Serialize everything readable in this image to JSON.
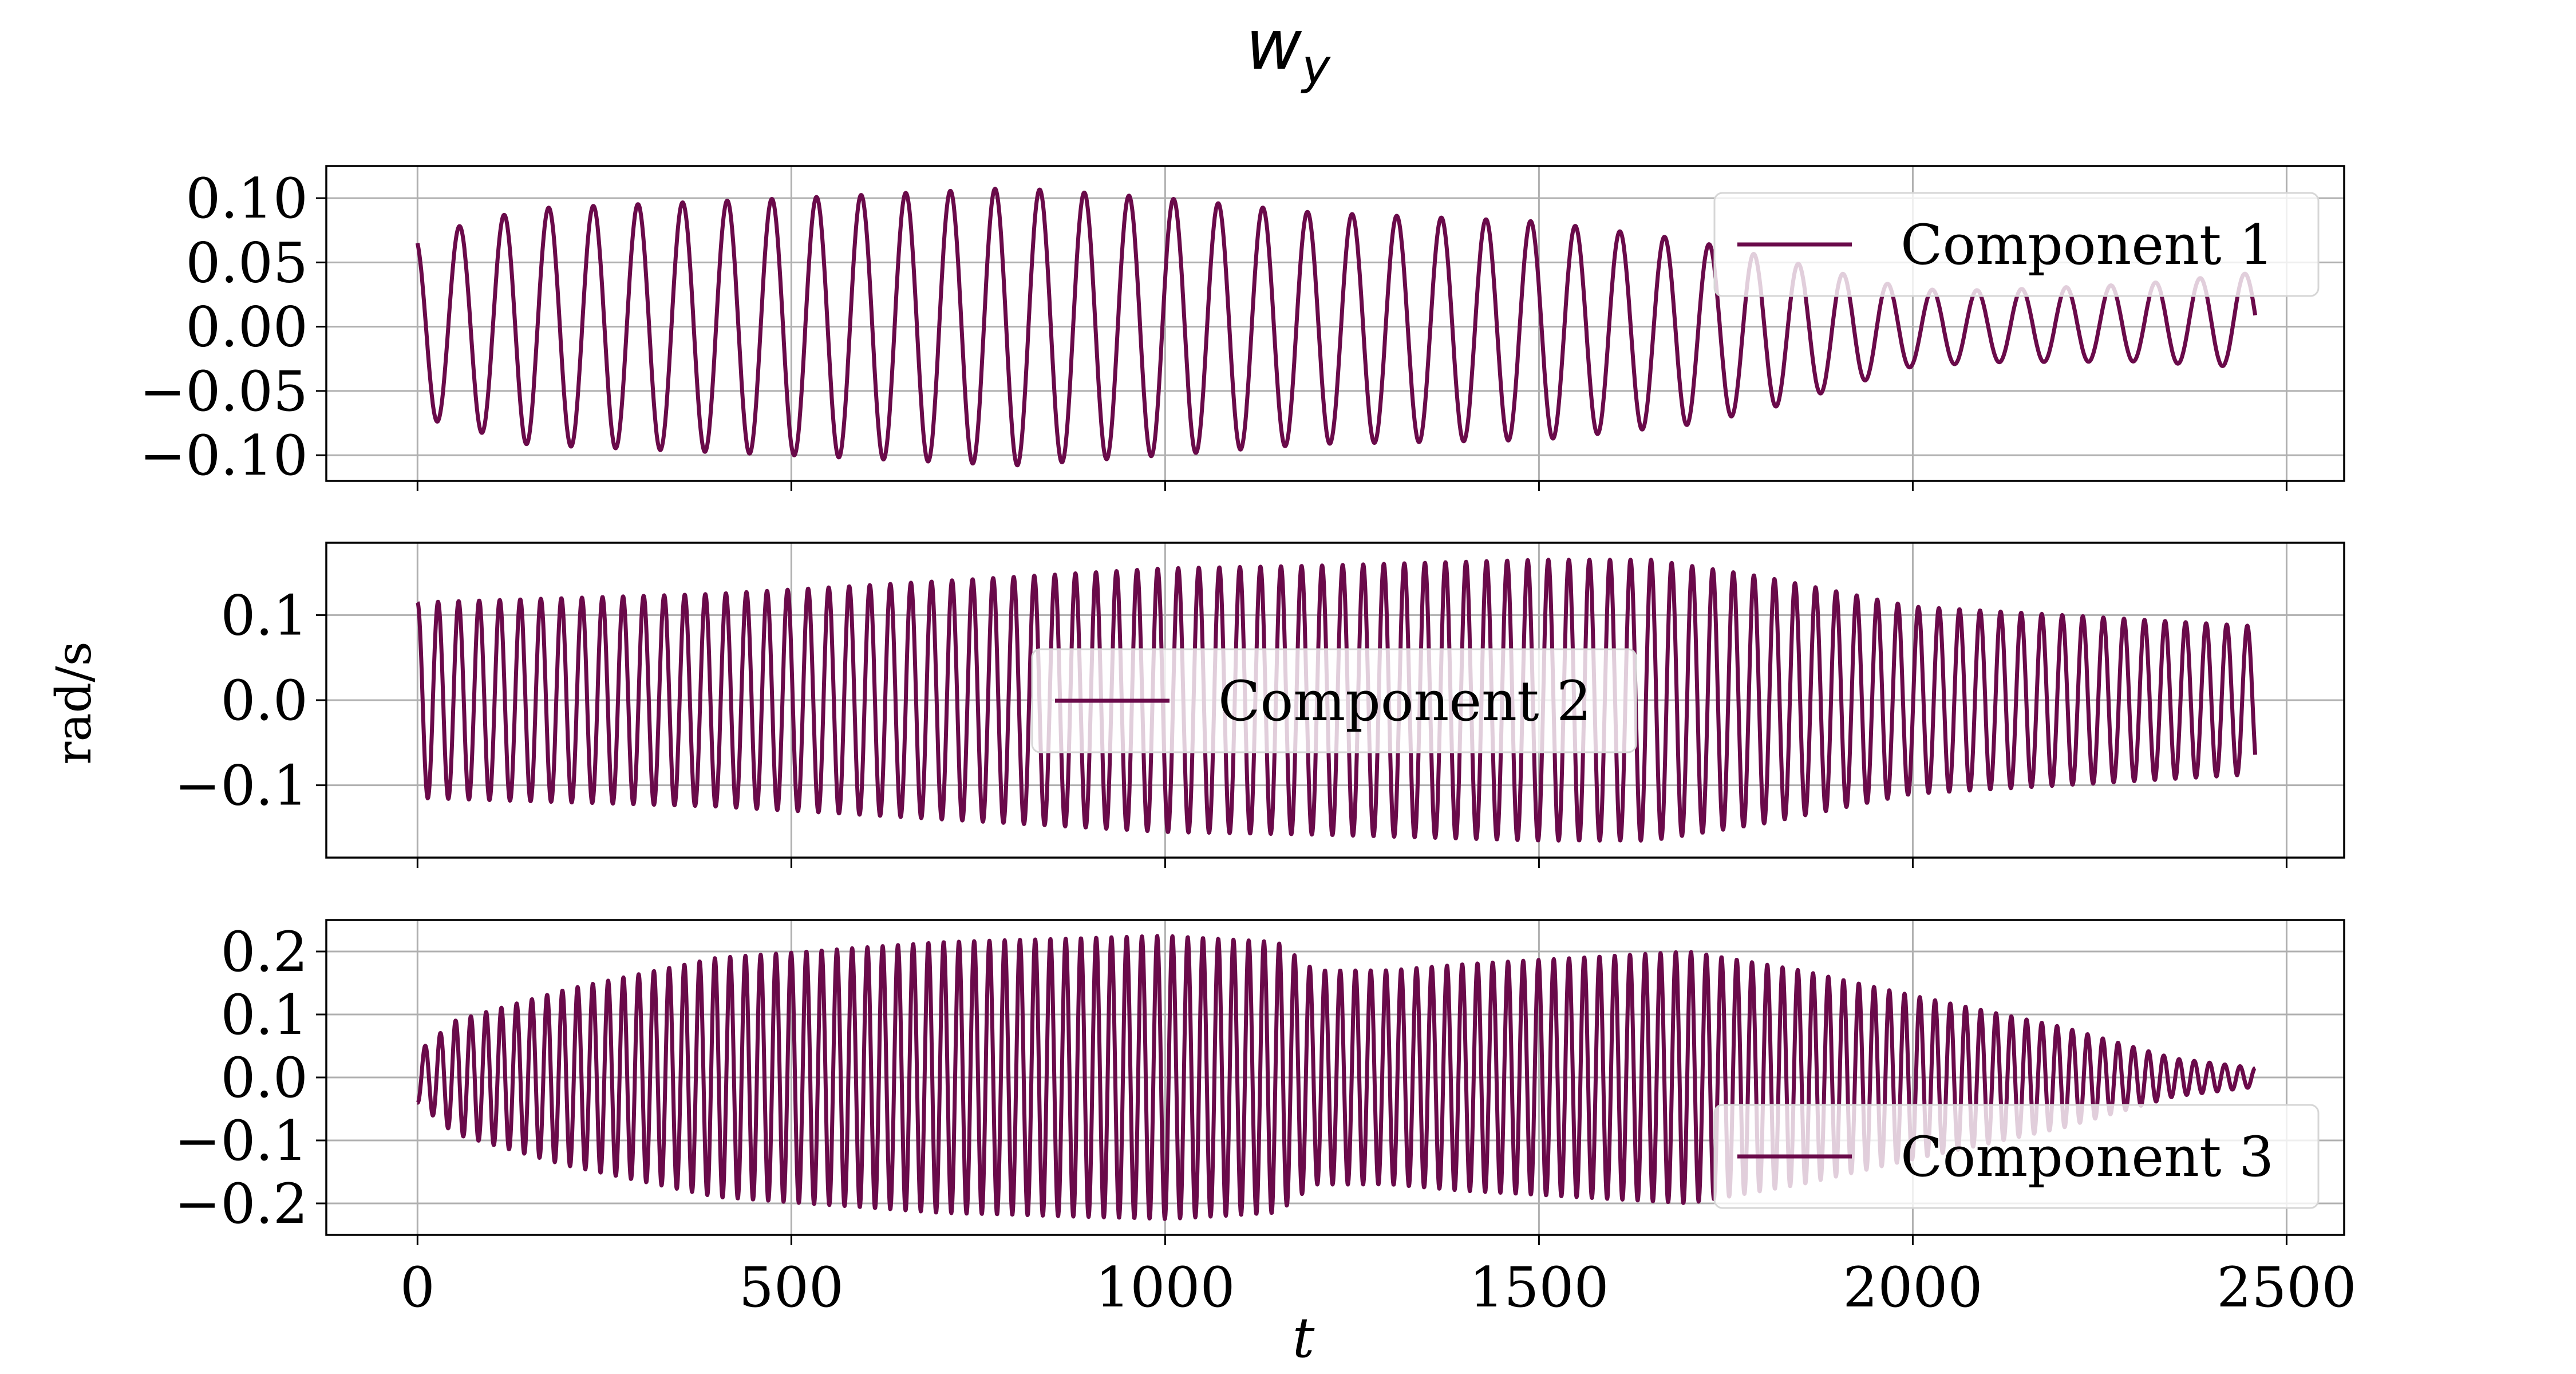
{
  "chart_data": {
    "type": "line",
    "title": "w",
    "title_subscript": "y",
    "xlabel": "t",
    "ylabel": "rad/s",
    "xlim": [
      -122,
      2577
    ],
    "x_ticks": [
      0,
      500,
      1000,
      1500,
      2000,
      2500
    ],
    "x_tick_labels": [
      "0",
      "500",
      "1000",
      "1500",
      "2000",
      "2500"
    ],
    "grid": true,
    "line_color": "#6a0a4a",
    "panels": [
      {
        "series_name": "Component 1",
        "legend_position": "top-right",
        "ylim": [
          -0.12,
          0.125
        ],
        "y_ticks": [
          -0.1,
          -0.05,
          0.0,
          0.05,
          0.1
        ],
        "y_tick_labels": [
          "−0.10",
          "−0.05",
          "0.00",
          "0.05",
          "0.10"
        ],
        "t_end": 2458,
        "start_value": 0.065,
        "period": 59.7,
        "envelope": [
          [
            0,
            0.07
          ],
          [
            150,
            0.092
          ],
          [
            500,
            0.1
          ],
          [
            800,
            0.108
          ],
          [
            1000,
            0.1
          ],
          [
            1200,
            0.09
          ],
          [
            1500,
            0.085
          ],
          [
            1700,
            0.072
          ],
          [
            1800,
            0.06
          ],
          [
            1900,
            0.045
          ],
          [
            2000,
            0.03
          ],
          [
            2100,
            0.028
          ],
          [
            2300,
            0.03
          ],
          [
            2458,
            0.037
          ]
        ],
        "offset": [
          [
            0,
            0
          ],
          [
            1000,
            0
          ],
          [
            1800,
            -0.005
          ],
          [
            2000,
            -0.001
          ],
          [
            2458,
            0.005
          ]
        ]
      },
      {
        "series_name": "Component 2",
        "legend_position": "center",
        "ylim": [
          -0.185,
          0.185
        ],
        "y_ticks": [
          -0.1,
          0.0,
          0.1
        ],
        "y_tick_labels": [
          "−0.1",
          "0.0",
          "0.1"
        ],
        "t_end": 2458,
        "start_value": 0.12,
        "period": 27.5,
        "envelope": [
          [
            0,
            0.115
          ],
          [
            400,
            0.125
          ],
          [
            800,
            0.145
          ],
          [
            1000,
            0.155
          ],
          [
            1200,
            0.158
          ],
          [
            1500,
            0.165
          ],
          [
            1650,
            0.165
          ],
          [
            1800,
            0.145
          ],
          [
            2000,
            0.11
          ],
          [
            2200,
            0.1
          ],
          [
            2458,
            0.087
          ]
        ],
        "offset": [
          [
            0,
            0
          ],
          [
            2458,
            0
          ]
        ]
      },
      {
        "series_name": "Component 3",
        "legend_position": "bottom-right",
        "ylim": [
          -0.25,
          0.25
        ],
        "y_ticks": [
          -0.2,
          -0.1,
          0.0,
          0.1,
          0.2
        ],
        "y_tick_labels": [
          "−0.2",
          "−0.1",
          "0.0",
          "0.1",
          "0.2"
        ],
        "t_end": 2458,
        "start_value": -0.085,
        "period": 20.4,
        "envelope": [
          [
            0,
            0.04
          ],
          [
            50,
            0.09
          ],
          [
            200,
            0.14
          ],
          [
            400,
            0.19
          ],
          [
            700,
            0.215
          ],
          [
            1000,
            0.225
          ],
          [
            1150,
            0.215
          ],
          [
            1200,
            0.17
          ],
          [
            1300,
            0.17
          ],
          [
            1400,
            0.18
          ],
          [
            1700,
            0.2
          ],
          [
            1850,
            0.17
          ],
          [
            2000,
            0.13
          ],
          [
            2200,
            0.08
          ],
          [
            2350,
            0.03
          ],
          [
            2458,
            0.015
          ]
        ],
        "offset": [
          [
            0,
            0
          ],
          [
            2458,
            0
          ]
        ]
      }
    ]
  }
}
